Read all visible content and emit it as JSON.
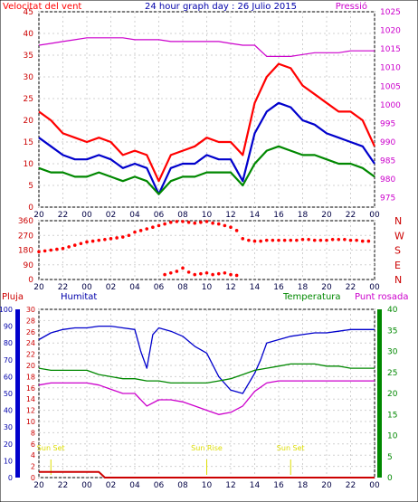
{
  "chart_data": [
    {
      "type": "line",
      "title": "24 hour graph day : 26 Julio 2015",
      "left_label": "Velocitat del vent",
      "right_label": "Pressió",
      "x_ticks": [
        "20",
        "22",
        "00",
        "02",
        "04",
        "06",
        "08",
        "10",
        "12",
        "14",
        "16",
        "18",
        "20",
        "22",
        "00"
      ],
      "x_range_hours": [
        0,
        28
      ],
      "ylim": [
        0,
        45
      ],
      "y_ticks": [
        0,
        5,
        10,
        15,
        20,
        25,
        30,
        35,
        40,
        45
      ],
      "y2lim": [
        972.5,
        1025
      ],
      "y2_ticks": [
        975,
        980,
        985,
        990,
        995,
        1000,
        1005,
        1010,
        1015,
        1020,
        1025
      ],
      "colors": {
        "gust": "#ff0000",
        "speed": "#0000cc",
        "avg": "#008800",
        "pressure": "#cc00cc"
      },
      "series": [
        {
          "name": "",
          "role": "gust",
          "color": "#ff0000",
          "hours": [
            0,
            1,
            2,
            3,
            4,
            5,
            6,
            7,
            8,
            9,
            10,
            11,
            12,
            13,
            14,
            15,
            16,
            17,
            18,
            19,
            20,
            21,
            22,
            23,
            24,
            25,
            26,
            27,
            28
          ],
          "values": [
            22,
            20,
            17,
            16,
            15,
            16,
            15,
            12,
            13,
            12,
            6,
            12,
            13,
            14,
            16,
            15,
            15,
            12,
            24,
            30,
            33,
            32,
            28,
            26,
            24,
            22,
            22,
            20,
            14
          ]
        },
        {
          "name": "",
          "role": "speed",
          "color": "#0000cc",
          "hours": [
            0,
            1,
            2,
            3,
            4,
            5,
            6,
            7,
            8,
            9,
            10,
            11,
            12,
            13,
            14,
            15,
            16,
            17,
            18,
            19,
            20,
            21,
            22,
            23,
            24,
            25,
            26,
            27,
            28
          ],
          "values": [
            16,
            14,
            12,
            11,
            11,
            12,
            11,
            9,
            10,
            9,
            3,
            9,
            10,
            10,
            12,
            11,
            11,
            6,
            17,
            22,
            24,
            23,
            20,
            19,
            17,
            16,
            15,
            14,
            10
          ]
        },
        {
          "name": "",
          "role": "avg",
          "color": "#008800",
          "hours": [
            0,
            1,
            2,
            3,
            4,
            5,
            6,
            7,
            8,
            9,
            10,
            11,
            12,
            13,
            14,
            15,
            16,
            17,
            18,
            19,
            20,
            21,
            22,
            23,
            24,
            25,
            26,
            27,
            28
          ],
          "values": [
            9,
            8,
            8,
            7,
            7,
            8,
            7,
            6,
            7,
            6,
            3,
            6,
            7,
            7,
            8,
            8,
            8,
            5,
            10,
            13,
            14,
            13,
            12,
            12,
            11,
            10,
            10,
            9,
            7
          ]
        },
        {
          "name": "",
          "role": "pressure",
          "color": "#cc00cc",
          "hours": [
            0,
            1,
            2,
            3,
            4,
            5,
            6,
            7,
            8,
            9,
            10,
            11,
            12,
            13,
            14,
            15,
            16,
            17,
            18,
            19,
            20,
            21,
            22,
            23,
            24,
            25,
            26,
            27,
            28
          ],
          "values": [
            1016,
            1016.5,
            1017,
            1017.5,
            1018,
            1018,
            1018,
            1018,
            1017.5,
            1017.5,
            1017.5,
            1017,
            1017,
            1017,
            1017,
            1017,
            1016.5,
            1016,
            1016,
            1013,
            1013,
            1013,
            1013.5,
            1014,
            1014,
            1014,
            1014.5,
            1014.5,
            1014.5
          ]
        }
      ]
    },
    {
      "type": "scatter",
      "right_labels": [
        "N",
        "W",
        "S",
        "E",
        "N"
      ],
      "x_ticks": [
        "20",
        "22",
        "00",
        "02",
        "04",
        "06",
        "08",
        "10",
        "12",
        "14",
        "16",
        "18",
        "20",
        "22",
        "00"
      ],
      "ylim": [
        0,
        360
      ],
      "y_ticks": [
        0,
        90,
        180,
        270,
        360
      ],
      "color": "#ff0000",
      "series": [
        {
          "name": "",
          "hours": [
            0,
            0.5,
            1,
            1.5,
            2,
            2.5,
            3,
            3.5,
            4,
            4.5,
            5,
            5.5,
            6,
            6.5,
            7,
            7.5,
            8,
            8.5,
            9,
            9.5,
            10,
            10.5,
            11,
            11.5,
            12,
            12.5,
            13,
            13.5,
            14,
            14.5,
            15,
            15.5,
            16,
            16.5,
            17,
            17.5,
            18,
            18.5,
            19,
            19.5,
            20,
            20.5,
            21,
            21.5,
            22,
            22.5,
            23,
            23.5,
            24,
            24.5,
            25,
            25.5,
            26,
            26.5,
            27,
            27.5
          ],
          "values": [
            170,
            175,
            180,
            185,
            190,
            200,
            210,
            220,
            230,
            235,
            240,
            245,
            250,
            255,
            260,
            270,
            290,
            300,
            310,
            320,
            330,
            340,
            350,
            355,
            355,
            350,
            345,
            350,
            355,
            345,
            340,
            330,
            320,
            300,
            250,
            240,
            235,
            235,
            240,
            240,
            240,
            240,
            240,
            240,
            245,
            245,
            240,
            240,
            240,
            245,
            245,
            245,
            240,
            240,
            235,
            235
          ]
        },
        {
          "name": "",
          "hours": [
            10.5,
            11,
            11.5,
            12,
            12.5,
            13,
            13.5,
            14,
            14.5,
            15,
            15.5,
            16,
            16.5
          ],
          "values": [
            30,
            40,
            50,
            70,
            45,
            30,
            35,
            40,
            30,
            35,
            40,
            30,
            25
          ]
        }
      ]
    },
    {
      "type": "line",
      "labels": {
        "rain": "Pluja",
        "humidity": "Humitat",
        "temperature": "Temperatura",
        "dewpoint": "Punt rosada"
      },
      "x_ticks": [
        "20",
        "22",
        "00",
        "02",
        "04",
        "06",
        "08",
        "10",
        "12",
        "14",
        "16",
        "18",
        "20",
        "22",
        "00"
      ],
      "rain_ylim": [
        0,
        100
      ],
      "rain_ticks": [
        0,
        10,
        20,
        30,
        40,
        50,
        60,
        70,
        80,
        90,
        100
      ],
      "humidity_ylim": [
        0,
        30
      ],
      "humidity_ticks": [
        0,
        2,
        4,
        6,
        8,
        10,
        12,
        14,
        16,
        18,
        20,
        22,
        24,
        26,
        28,
        30
      ],
      "temp_ylim": [
        0,
        40
      ],
      "temp_ticks": [
        0,
        5,
        10,
        15,
        20,
        25,
        30,
        35,
        40
      ],
      "annotations": [
        {
          "text": "Sun Set",
          "hour": 1
        },
        {
          "text": "Sun Rise",
          "hour": 14
        },
        {
          "text": "Sun Set",
          "hour": 21
        }
      ],
      "colors": {
        "rain": "#cc0000",
        "humidity": "#0000cc",
        "temperature": "#008800",
        "dewpoint": "#cc00cc"
      },
      "series": [
        {
          "name": "Humitat",
          "color": "#0000cc",
          "hours": [
            0,
            1,
            2,
            3,
            4,
            5,
            6,
            7,
            8,
            8.5,
            9,
            9.5,
            10,
            11,
            12,
            13,
            14,
            15,
            16,
            17,
            18,
            18.5,
            19,
            20,
            21,
            22,
            23,
            24,
            25,
            26,
            27,
            28
          ],
          "values": [
            82,
            86,
            88,
            89,
            89,
            90,
            90,
            89,
            88,
            75,
            65,
            85,
            89,
            87,
            84,
            78,
            74,
            60,
            52,
            50,
            62,
            70,
            80,
            82,
            84,
            85,
            86,
            86,
            87,
            88,
            88,
            88
          ]
        },
        {
          "name": "Temperatura",
          "color": "#008800",
          "hours": [
            0,
            1,
            2,
            3,
            4,
            5,
            6,
            7,
            8,
            9,
            10,
            11,
            12,
            13,
            14,
            15,
            16,
            17,
            18,
            19,
            20,
            21,
            22,
            23,
            24,
            25,
            26,
            27,
            28
          ],
          "values": [
            26,
            25.5,
            25.5,
            25.5,
            25.5,
            24.5,
            24,
            23.5,
            23.5,
            23,
            23,
            22.5,
            22.5,
            22.5,
            22.5,
            23,
            23.5,
            24.5,
            25.5,
            26,
            26.5,
            27,
            27,
            27,
            26.5,
            26.5,
            26,
            26,
            26
          ]
        },
        {
          "name": "Punt rosada",
          "color": "#cc00cc",
          "hours": [
            0,
            1,
            2,
            3,
            4,
            5,
            6,
            7,
            8,
            9,
            10,
            11,
            12,
            13,
            14,
            15,
            16,
            17,
            18,
            19,
            20,
            21,
            22,
            23,
            24,
            25,
            26,
            27,
            28
          ],
          "values": [
            22,
            22.5,
            22.5,
            22.5,
            22.5,
            22,
            21,
            20,
            20,
            17,
            18.5,
            18.5,
            18,
            17,
            16,
            15,
            15.5,
            17,
            20.5,
            22.5,
            23,
            23,
            23,
            23,
            23,
            23,
            23,
            23,
            23
          ]
        },
        {
          "name": "Pluja",
          "color": "#cc0000",
          "hours": [
            0,
            5,
            5.5,
            28
          ],
          "values": [
            1,
            1,
            0,
            0
          ]
        }
      ]
    }
  ]
}
